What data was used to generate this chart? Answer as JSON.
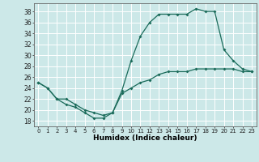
{
  "xlabel": "Humidex (Indice chaleur)",
  "bg_color": "#cce8e8",
  "line_color": "#1a6b5a",
  "grid_color": "#ffffff",
  "xlim": [
    -0.5,
    23.5
  ],
  "ylim": [
    17,
    39.5
  ],
  "yticks": [
    18,
    20,
    22,
    24,
    26,
    28,
    30,
    32,
    34,
    36,
    38
  ],
  "xticks": [
    0,
    1,
    2,
    3,
    4,
    5,
    6,
    7,
    8,
    9,
    10,
    11,
    12,
    13,
    14,
    15,
    16,
    17,
    18,
    19,
    20,
    21,
    22,
    23
  ],
  "line1_x": [
    0,
    1,
    2,
    3,
    4,
    5,
    6,
    7,
    8,
    9,
    10,
    11,
    12,
    13,
    14,
    15,
    16,
    17,
    18,
    19,
    20,
    21,
    22,
    23
  ],
  "line1_y": [
    25,
    24,
    22,
    21,
    20.5,
    19.5,
    18.5,
    18.5,
    19.5,
    23.5,
    29,
    33.5,
    36,
    37.5,
    37.5,
    37.5,
    37.5,
    38.5,
    38,
    38,
    31,
    29,
    27.5,
    27
  ],
  "line2_x": [
    0,
    1,
    2,
    3,
    4,
    5,
    6,
    7,
    8,
    9,
    10,
    11,
    12,
    13,
    14,
    15,
    16,
    17,
    18,
    19,
    20,
    21,
    22,
    23
  ],
  "line2_y": [
    25,
    24,
    22,
    22,
    21,
    20,
    19.5,
    19,
    19.5,
    23,
    24,
    25,
    25.5,
    26.5,
    27,
    27,
    27,
    27.5,
    27.5,
    27.5,
    27.5,
    27.5,
    27,
    27
  ]
}
